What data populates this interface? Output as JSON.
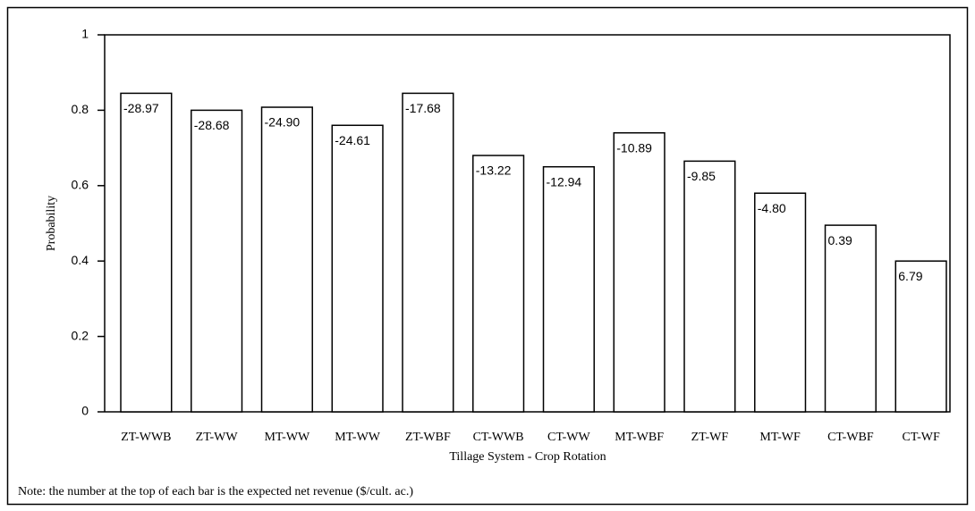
{
  "chart_data": {
    "type": "bar",
    "x_label": "Tillage System - Crop Rotation",
    "y_label": "Probability",
    "note": "Note: the number at the top of each bar is the expected net revenue ($/cult. ac.)",
    "categories": [
      "ZT-WWB",
      "ZT-WW",
      "MT-WW",
      "MT-WW",
      "ZT-WBF",
      "CT-WWB",
      "CT-WW",
      "MT-WBF",
      "ZT-WF",
      "MT-WF",
      "CT-WBF",
      "CT-WF"
    ],
    "values": [
      0.845,
      0.8,
      0.808,
      0.76,
      0.845,
      0.68,
      0.65,
      0.74,
      0.665,
      0.58,
      0.495,
      0.4
    ],
    "bar_annotations": [
      "-28.97",
      "-28.68",
      "-24.90",
      "-24.61",
      "-17.68",
      "-13.22",
      "-12.94",
      "-10.89",
      "-9.85",
      "-4.80",
      "0.39",
      "6.79"
    ],
    "color": "#ffffff",
    "ylim": [
      0,
      1
    ],
    "yticks": [
      0,
      0.2,
      0.4,
      0.6,
      0.8,
      1
    ]
  }
}
